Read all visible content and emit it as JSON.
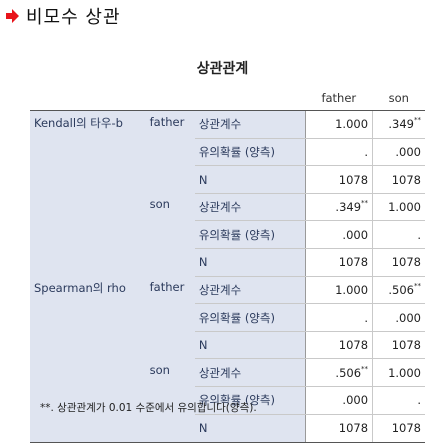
{
  "heading": {
    "icon": "red-arrow-icon",
    "title": "비모수 상관"
  },
  "table": {
    "title": "상관관계",
    "columns": [
      "father",
      "son"
    ],
    "methods": [
      {
        "name": "Kendall의 타우-b",
        "variables": [
          {
            "name": "father",
            "rows": [
              {
                "stat": "상관계수",
                "values": [
                  "1.000",
                  ".349"
                ],
                "sig": [
                  "",
                  "**"
                ]
              },
              {
                "stat": "유의확률 (양측)",
                "values": [
                  ".",
                  ".000"
                ],
                "sig": [
                  "",
                  ""
                ]
              },
              {
                "stat": "N",
                "values": [
                  "1078",
                  "1078"
                ],
                "sig": [
                  "",
                  ""
                ]
              }
            ]
          },
          {
            "name": "son",
            "rows": [
              {
                "stat": "상관계수",
                "values": [
                  ".349",
                  "1.000"
                ],
                "sig": [
                  "**",
                  ""
                ]
              },
              {
                "stat": "유의확률 (양측)",
                "values": [
                  ".000",
                  "."
                ],
                "sig": [
                  "",
                  ""
                ]
              },
              {
                "stat": "N",
                "values": [
                  "1078",
                  "1078"
                ],
                "sig": [
                  "",
                  ""
                ]
              }
            ]
          }
        ]
      },
      {
        "name": "Spearman의 rho",
        "variables": [
          {
            "name": "father",
            "rows": [
              {
                "stat": "상관계수",
                "values": [
                  "1.000",
                  ".506"
                ],
                "sig": [
                  "",
                  "**"
                ]
              },
              {
                "stat": "유의확률 (양측)",
                "values": [
                  ".",
                  ".000"
                ],
                "sig": [
                  "",
                  ""
                ]
              },
              {
                "stat": "N",
                "values": [
                  "1078",
                  "1078"
                ],
                "sig": [
                  "",
                  ""
                ]
              }
            ]
          },
          {
            "name": "son",
            "rows": [
              {
                "stat": "상관계수",
                "values": [
                  ".506",
                  "1.000"
                ],
                "sig": [
                  "**",
                  ""
                ]
              },
              {
                "stat": "유의확률 (양측)",
                "values": [
                  ".000",
                  "."
                ],
                "sig": [
                  "",
                  ""
                ]
              },
              {
                "stat": "N",
                "values": [
                  "1078",
                  "1078"
                ],
                "sig": [
                  "",
                  ""
                ]
              }
            ]
          }
        ]
      }
    ]
  },
  "footnote": "**. 상관관계가 0.01 수준에서 유의합니다(양측).",
  "colors": {
    "arrow": "#e8141b",
    "stub_bg": "#dfe4f0",
    "stub_text": "#2b3a5c"
  }
}
